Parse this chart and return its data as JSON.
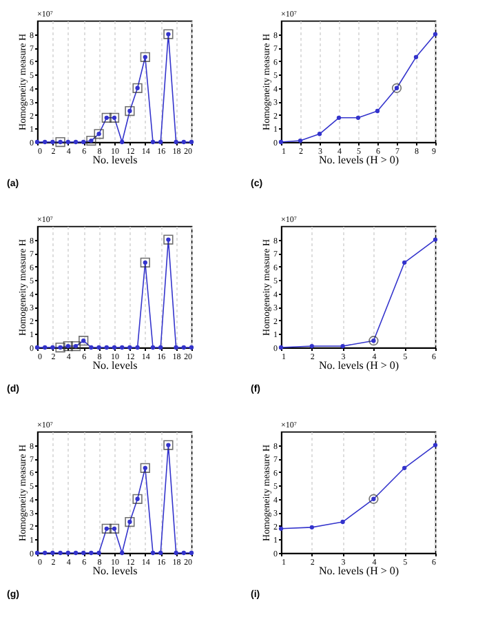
{
  "chart_data": [
    {
      "type": "line",
      "xlabel": "No. levels",
      "ylabel": "Homogeneity measure H",
      "annotations": [
        "×10⁷",
        "(a)"
      ],
      "x": [
        0,
        1,
        2,
        3,
        4,
        5,
        6,
        7,
        8,
        9,
        10,
        11,
        12,
        13,
        14,
        15,
        16,
        17,
        18,
        19,
        20
      ],
      "xlim": [
        0,
        20
      ],
      "xticks": [
        0,
        2,
        4,
        6,
        8,
        10,
        12,
        14,
        16,
        18,
        20
      ],
      "ylim": [
        0,
        9
      ],
      "yticks": [
        0,
        1,
        2,
        3,
        4,
        5,
        6,
        7,
        8
      ],
      "grid": "x",
      "series": [
        {
          "color": "#3333cc",
          "marker": "circle",
          "values": [
            0,
            0,
            0,
            0,
            0,
            0,
            0,
            0.1,
            0.6,
            1.8,
            1.8,
            0,
            2.3,
            4.0,
            6.3,
            0,
            0,
            8.0,
            0,
            0,
            0
          ]
        },
        {
          "type": "scatter",
          "marker": "square",
          "color": "#333333",
          "x": [
            3,
            7,
            8,
            9,
            10,
            12,
            13,
            14,
            17
          ],
          "values": [
            0,
            0.1,
            0.6,
            1.8,
            1.8,
            2.3,
            4.0,
            6.3,
            8.0
          ]
        }
      ]
    },
    {
      "type": "line",
      "xlabel": "No. levels (H > 0)",
      "ylabel": "Homogeneity measure H",
      "annotations": [
        "×10⁷",
        "(c)"
      ],
      "x": [
        1,
        2,
        3,
        4,
        5,
        6,
        7,
        8,
        9
      ],
      "xlim": [
        1,
        9
      ],
      "xticks": [
        1,
        2,
        3,
        4,
        5,
        6,
        7,
        8,
        9
      ],
      "ylim": [
        0,
        9
      ],
      "yticks": [
        0,
        1,
        2,
        3,
        4,
        5,
        6,
        7,
        8
      ],
      "grid": "x",
      "series": [
        {
          "color": "#3333cc",
          "marker": "circle",
          "values": [
            0,
            0.1,
            0.6,
            1.8,
            1.8,
            2.3,
            4.0,
            6.3,
            8.0
          ]
        },
        {
          "type": "scatter",
          "marker": "circle",
          "color": "#333333",
          "x": [
            7
          ],
          "values": [
            4.0
          ]
        }
      ]
    },
    {
      "type": "line",
      "xlabel": "No. levels",
      "ylabel": "Homogeneity measure H",
      "annotations": [
        "×10⁷",
        "(d)"
      ],
      "x": [
        0,
        1,
        2,
        3,
        4,
        5,
        6,
        7,
        8,
        9,
        10,
        11,
        12,
        13,
        14,
        15,
        16,
        17,
        18,
        19,
        20
      ],
      "xlim": [
        0,
        20
      ],
      "xticks": [
        0,
        2,
        4,
        6,
        8,
        10,
        12,
        14,
        16,
        18,
        20
      ],
      "ylim": [
        0,
        9
      ],
      "yticks": [
        0,
        1,
        2,
        3,
        4,
        5,
        6,
        7,
        8
      ],
      "grid": "x",
      "series": [
        {
          "color": "#3333cc",
          "marker": "circle",
          "values": [
            0,
            0,
            0,
            0,
            0.1,
            0.1,
            0.5,
            0,
            0,
            0,
            0,
            0,
            0,
            0,
            6.3,
            0,
            0,
            8.0,
            0,
            0,
            0
          ]
        },
        {
          "type": "scatter",
          "marker": "square",
          "color": "#333333",
          "x": [
            3,
            4,
            5,
            6,
            14,
            17
          ],
          "values": [
            0,
            0.1,
            0.1,
            0.5,
            6.3,
            8.0
          ]
        }
      ]
    },
    {
      "type": "line",
      "xlabel": "No. levels (H > 0)",
      "ylabel": "Homogeneity measure H",
      "annotations": [
        "×10⁷",
        "(f)"
      ],
      "x": [
        1,
        2,
        3,
        4,
        5,
        6
      ],
      "xlim": [
        1,
        6
      ],
      "xticks": [
        1,
        2,
        3,
        4,
        5,
        6
      ],
      "ylim": [
        0,
        9
      ],
      "yticks": [
        0,
        1,
        2,
        3,
        4,
        5,
        6,
        7,
        8
      ],
      "grid": "x",
      "series": [
        {
          "color": "#3333cc",
          "marker": "circle",
          "values": [
            0,
            0.1,
            0.1,
            0.5,
            6.3,
            8.0
          ]
        },
        {
          "type": "scatter",
          "marker": "circle",
          "color": "#333333",
          "x": [
            4
          ],
          "values": [
            0.5
          ]
        }
      ]
    },
    {
      "type": "line",
      "xlabel": "No. levels",
      "ylabel": "Homogeneity measure H",
      "annotations": [
        "×10⁷",
        "(g)"
      ],
      "x": [
        0,
        1,
        2,
        3,
        4,
        5,
        6,
        7,
        8,
        9,
        10,
        11,
        12,
        13,
        14,
        15,
        16,
        17,
        18,
        19,
        20
      ],
      "xlim": [
        0,
        20
      ],
      "xticks": [
        0,
        2,
        4,
        6,
        8,
        10,
        12,
        14,
        16,
        18,
        20
      ],
      "ylim": [
        0,
        9
      ],
      "yticks": [
        0,
        1,
        2,
        3,
        4,
        5,
        6,
        7,
        8
      ],
      "grid": "x",
      "series": [
        {
          "color": "#3333cc",
          "marker": "circle",
          "values": [
            0,
            0,
            0,
            0,
            0,
            0,
            0,
            0,
            0,
            1.8,
            1.8,
            0,
            2.3,
            4.0,
            6.3,
            0,
            0,
            8.0,
            0,
            0,
            0
          ]
        },
        {
          "type": "scatter",
          "marker": "square",
          "color": "#333333",
          "x": [
            9,
            10,
            12,
            13,
            14,
            17
          ],
          "values": [
            1.8,
            1.8,
            2.3,
            4.0,
            6.3,
            8.0
          ]
        }
      ]
    },
    {
      "type": "line",
      "xlabel": "No. levels (H > 0)",
      "ylabel": "Homogeneity measure H",
      "annotations": [
        "×10⁷",
        "(i)"
      ],
      "x": [
        1,
        2,
        3,
        4,
        5,
        6
      ],
      "xlim": [
        1,
        6
      ],
      "xticks": [
        1,
        2,
        3,
        4,
        5,
        6
      ],
      "ylim": [
        0,
        9
      ],
      "yticks": [
        0,
        1,
        2,
        3,
        4,
        5,
        6,
        7,
        8
      ],
      "grid": "x",
      "series": [
        {
          "color": "#3333cc",
          "marker": "circle",
          "values": [
            1.8,
            1.9,
            2.3,
            4.0,
            6.3,
            8.0
          ]
        },
        {
          "type": "scatter",
          "marker": "circle",
          "color": "#333333",
          "x": [
            4
          ],
          "values": [
            4.0
          ]
        }
      ]
    }
  ]
}
